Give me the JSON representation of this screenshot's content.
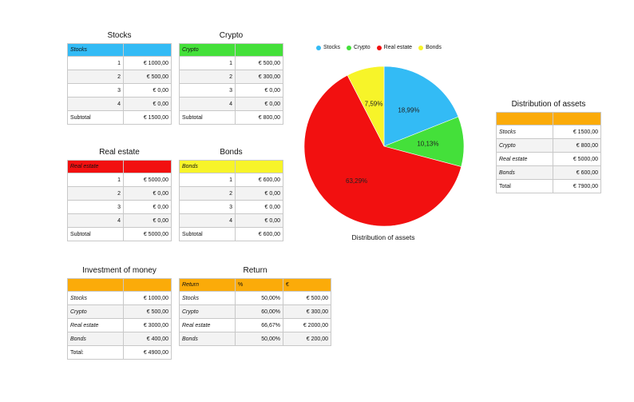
{
  "colors": {
    "stocks": "#33bbf5",
    "crypto": "#44e03a",
    "real_estate": "#f21010",
    "bonds": "#f7f429",
    "orange": "#fbab09"
  },
  "stocks": {
    "title": "Stocks",
    "header": "Stocks",
    "rows": [
      {
        "n": "1",
        "v": "€ 1000,00"
      },
      {
        "n": "2",
        "v": "€ 500,00"
      },
      {
        "n": "3",
        "v": "€ 0,00"
      },
      {
        "n": "4",
        "v": "€ 0,00"
      }
    ],
    "subtotal_label": "Subtotal",
    "subtotal": "€ 1500,00"
  },
  "crypto": {
    "title": "Crypto",
    "header": "Crypto",
    "rows": [
      {
        "n": "1",
        "v": "€ 500,00"
      },
      {
        "n": "2",
        "v": "€ 300,00"
      },
      {
        "n": "3",
        "v": "€ 0,00"
      },
      {
        "n": "4",
        "v": "€ 0,00"
      }
    ],
    "subtotal_label": "Subtotal",
    "subtotal": "€ 800,00"
  },
  "real_estate": {
    "title": "Real estate",
    "header": "Real estate",
    "rows": [
      {
        "n": "1",
        "v": "€ 5000,00"
      },
      {
        "n": "2",
        "v": "€ 0,00"
      },
      {
        "n": "3",
        "v": "€ 0,00"
      },
      {
        "n": "4",
        "v": "€ 0,00"
      }
    ],
    "subtotal_label": "Subtotal",
    "subtotal": "€ 5000,00"
  },
  "bonds": {
    "title": "Bonds",
    "header": "Bonds",
    "rows": [
      {
        "n": "1",
        "v": "€ 600,00"
      },
      {
        "n": "2",
        "v": "€ 0,00"
      },
      {
        "n": "3",
        "v": "€ 0,00"
      },
      {
        "n": "4",
        "v": "€ 0,00"
      }
    ],
    "subtotal_label": "Subtotal",
    "subtotal": "€ 600,00"
  },
  "investment": {
    "title": "Investment of money",
    "rows": [
      {
        "label": "Stocks",
        "v": "€ 1000,00"
      },
      {
        "label": "Crypto",
        "v": "€ 500,00"
      },
      {
        "label": "Real estate",
        "v": "€ 3000,00"
      },
      {
        "label": "Bonds",
        "v": "€ 400,00"
      }
    ],
    "total_label": "Total:",
    "total": "€ 4900,00"
  },
  "return": {
    "title": "Return",
    "headers": [
      "Return",
      "%",
      "€"
    ],
    "rows": [
      {
        "label": "Stocks",
        "pct": "50,00%",
        "v": "€ 500,00"
      },
      {
        "label": "Crypto",
        "pct": "60,00%",
        "v": "€ 300,00"
      },
      {
        "label": "Real estate",
        "pct": "66,67%",
        "v": "€ 2000,00"
      },
      {
        "label": "Bonds",
        "pct": "50,00%",
        "v": "€ 200,00"
      }
    ]
  },
  "distribution": {
    "title": "Distribution of assets",
    "rows": [
      {
        "label": "Stocks",
        "v": "€ 1500,00"
      },
      {
        "label": "Crypto",
        "v": "€ 800,00"
      },
      {
        "label": "Real estate",
        "v": "€ 5000,00"
      },
      {
        "label": "Bonds",
        "v": "€ 600,00"
      }
    ],
    "total_label": "Total",
    "total": "€ 7900,00"
  },
  "chart_data": {
    "type": "pie",
    "title": "Distribution of assets",
    "categories": [
      "Stocks",
      "Crypto",
      "Real estate",
      "Bonds"
    ],
    "values": [
      1500,
      800,
      5000,
      600
    ],
    "labels": [
      "18,99%",
      "10,13%",
      "63,29%",
      "7,59%"
    ],
    "colors": [
      "#33bbf5",
      "#44e03a",
      "#f21010",
      "#f7f429"
    ],
    "legend_position": "top"
  }
}
